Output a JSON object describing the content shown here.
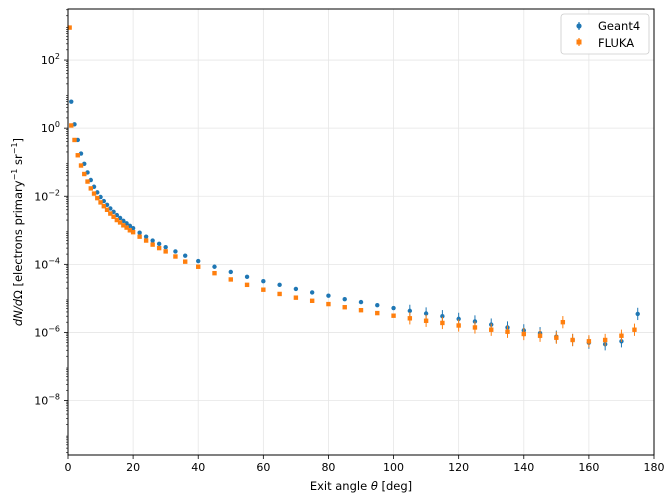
{
  "chart_data": {
    "type": "scatter",
    "title": "",
    "xlabel_prefix": "Exit angle ",
    "xlabel_symbol": "θ",
    "xlabel_suffix": " [deg]",
    "ylabel_prefix": "dN/d",
    "ylabel_symbol": "Ω",
    "ylabel_mid1": " [electrons primary",
    "ylabel_sup1": "−1",
    "ylabel_mid2": " sr",
    "ylabel_sup2": "−1",
    "ylabel_end": "]",
    "xlim": [
      0,
      180
    ],
    "ylim_log10": [
      -9.6,
      3.5
    ],
    "yscale": "log",
    "grid": true,
    "legend_position": "top-right",
    "x_ticks": [
      0,
      20,
      40,
      60,
      80,
      100,
      120,
      140,
      160,
      180
    ],
    "y_tick_exponents": [
      -8,
      -6,
      -4,
      -2,
      0,
      2
    ],
    "y_tick_base": "10",
    "colors": {
      "geant4": "#1f77b4",
      "fluka": "#ff7f0e",
      "grid": "#e6e6e6"
    },
    "series": [
      {
        "name": "Geant4",
        "key": "geant4",
        "points": [
          [
            1,
            6.0
          ],
          [
            2,
            1.3
          ],
          [
            3,
            0.45
          ],
          [
            4,
            0.18
          ],
          [
            5,
            0.09
          ],
          [
            6,
            0.05
          ],
          [
            7,
            0.03
          ],
          [
            8,
            0.019
          ],
          [
            9,
            0.013
          ],
          [
            10,
            0.0095
          ],
          [
            11,
            0.0072
          ],
          [
            12,
            0.0056
          ],
          [
            13,
            0.0044
          ],
          [
            14,
            0.0035
          ],
          [
            15,
            0.0028
          ],
          [
            16,
            0.0023
          ],
          [
            17,
            0.0019
          ],
          [
            18,
            0.0016
          ],
          [
            19,
            0.00135
          ],
          [
            20,
            0.00115
          ],
          [
            22,
            0.00085
          ],
          [
            24,
            0.00065
          ],
          [
            26,
            0.0005
          ],
          [
            28,
            0.0004
          ],
          [
            30,
            0.00032
          ],
          [
            33,
            0.00024
          ],
          [
            36,
            0.00018
          ],
          [
            40,
            0.000125
          ],
          [
            45,
            8.5e-05
          ],
          [
            50,
            6e-05
          ],
          [
            55,
            4.3e-05
          ],
          [
            60,
            3.2e-05
          ],
          [
            65,
            2.5e-05
          ],
          [
            70,
            1.9e-05
          ],
          [
            75,
            1.5e-05
          ],
          [
            80,
            1.2e-05
          ],
          [
            85,
            9.5e-06
          ],
          [
            90,
            7.8e-06
          ],
          [
            95,
            6.3e-06
          ],
          [
            100,
            5.2e-06
          ],
          [
            105,
            4.3e-06
          ],
          [
            110,
            3.6e-06
          ],
          [
            115,
            3e-06
          ],
          [
            120,
            2.5e-06
          ],
          [
            125,
            2.1e-06
          ],
          [
            130,
            1.7e-06
          ],
          [
            135,
            1.4e-06
          ],
          [
            140,
            1.15e-06
          ],
          [
            145,
            9.5e-07
          ],
          [
            150,
            7.5e-07
          ],
          [
            155,
            6e-07
          ],
          [
            160,
            5e-07
          ],
          [
            165,
            4.5e-07
          ],
          [
            170,
            5.5e-07
          ],
          [
            175,
            3.5e-06
          ]
        ]
      },
      {
        "name": "FLUKA",
        "key": "fluka",
        "points": [
          [
            0.5,
            900
          ],
          [
            1,
            1.2
          ],
          [
            2,
            0.45
          ],
          [
            3,
            0.16
          ],
          [
            4,
            0.08
          ],
          [
            5,
            0.045
          ],
          [
            6,
            0.027
          ],
          [
            7,
            0.017
          ],
          [
            8,
            0.012
          ],
          [
            9,
            0.0088
          ],
          [
            10,
            0.0066
          ],
          [
            11,
            0.0051
          ],
          [
            12,
            0.004
          ],
          [
            13,
            0.0031
          ],
          [
            14,
            0.0025
          ],
          [
            15,
            0.002
          ],
          [
            16,
            0.0017
          ],
          [
            17,
            0.0014
          ],
          [
            18,
            0.0012
          ],
          [
            19,
            0.001
          ],
          [
            20,
            0.00088
          ],
          [
            22,
            0.00065
          ],
          [
            24,
            0.0005
          ],
          [
            26,
            0.00038
          ],
          [
            28,
            0.0003
          ],
          [
            30,
            0.00024
          ],
          [
            33,
            0.00017
          ],
          [
            36,
            0.00012
          ],
          [
            40,
            8.5e-05
          ],
          [
            45,
            5.5e-05
          ],
          [
            50,
            3.6e-05
          ],
          [
            55,
            2.5e-05
          ],
          [
            60,
            1.8e-05
          ],
          [
            65,
            1.35e-05
          ],
          [
            70,
            1.05e-05
          ],
          [
            75,
            8.5e-06
          ],
          [
            80,
            6.8e-06
          ],
          [
            85,
            5.5e-06
          ],
          [
            90,
            4.5e-06
          ],
          [
            95,
            3.7e-06
          ],
          [
            100,
            3.1e-06
          ],
          [
            105,
            2.6e-06
          ],
          [
            110,
            2.2e-06
          ],
          [
            115,
            1.9e-06
          ],
          [
            120,
            1.6e-06
          ],
          [
            125,
            1.4e-06
          ],
          [
            130,
            1.2e-06
          ],
          [
            135,
            1.05e-06
          ],
          [
            140,
            9e-07
          ],
          [
            145,
            8e-07
          ],
          [
            150,
            7e-07
          ],
          [
            152,
            2e-06
          ],
          [
            155,
            6e-07
          ],
          [
            160,
            5.5e-07
          ],
          [
            165,
            6e-07
          ],
          [
            170,
            8e-07
          ],
          [
            174,
            1.2e-06
          ]
        ]
      }
    ]
  }
}
